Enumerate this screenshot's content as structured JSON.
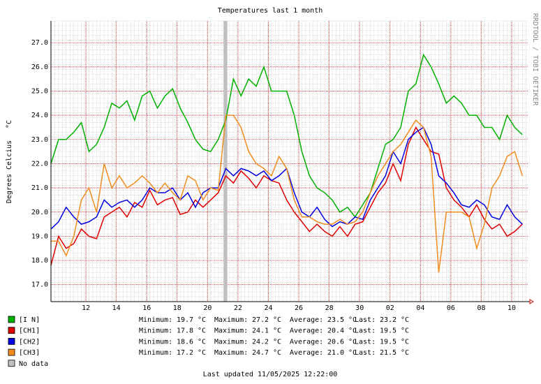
{
  "chart_data": {
    "type": "line",
    "title": "Temperatures last 1 month",
    "ylabel": "Degrees Celcius",
    "yunit": "°C",
    "watermark": "RRDTOOL / TOBI OETIKER",
    "footer": "Last updated 11/05/2025 12:22:00",
    "x": [
      0,
      0.5,
      1,
      1.5,
      2,
      2.5,
      3,
      3.5,
      4,
      4.5,
      5,
      5.5,
      6,
      6.5,
      7,
      7.5,
      8,
      8.5,
      9,
      9.5,
      10,
      10.5,
      11,
      11.5,
      12,
      12.5,
      13,
      13.5,
      14,
      14.5,
      15,
      15.5,
      16,
      16.5,
      17,
      17.5,
      18,
      18.5,
      19,
      19.5,
      20,
      20.5,
      21,
      21.5,
      22,
      22.5,
      23,
      23.5,
      24,
      24.5,
      25,
      25.5,
      26,
      26.5,
      27,
      27.5,
      28,
      28.5,
      29,
      29.5,
      30,
      30.5,
      31
    ],
    "xlim": [
      0,
      31.4
    ],
    "xticks": [
      {
        "value": 2.3,
        "label": "12"
      },
      {
        "value": 4.3,
        "label": "14"
      },
      {
        "value": 6.3,
        "label": "16"
      },
      {
        "value": 8.3,
        "label": "18"
      },
      {
        "value": 10.3,
        "label": "20"
      },
      {
        "value": 12.3,
        "label": "22"
      },
      {
        "value": 14.3,
        "label": "24"
      },
      {
        "value": 16.3,
        "label": "26"
      },
      {
        "value": 18.3,
        "label": "28"
      },
      {
        "value": 20.3,
        "label": "30"
      },
      {
        "value": 22.3,
        "label": "02"
      },
      {
        "value": 24.3,
        "label": "04"
      },
      {
        "value": 26.3,
        "label": "06"
      },
      {
        "value": 28.3,
        "label": "08"
      },
      {
        "value": 30.3,
        "label": "10"
      }
    ],
    "x_minor_step": 0.25,
    "ylim": [
      16.3,
      27.9
    ],
    "yticks": [
      {
        "value": 17,
        "label": "17.0"
      },
      {
        "value": 18,
        "label": "18.0"
      },
      {
        "value": 19,
        "label": "19.0"
      },
      {
        "value": 20,
        "label": "20.0"
      },
      {
        "value": 21,
        "label": "21.0"
      },
      {
        "value": 22,
        "label": "22.0"
      },
      {
        "value": 23,
        "label": "23.0"
      },
      {
        "value": 24,
        "label": "24.0"
      },
      {
        "value": 25,
        "label": "25.0"
      },
      {
        "value": 26,
        "label": "26.0"
      },
      {
        "value": 27,
        "label": "27.0"
      }
    ],
    "y_minor_step": 0.2,
    "grid": true,
    "series": [
      {
        "name": "[I N]",
        "color": "#00b000",
        "values": [
          22.0,
          23.0,
          23.0,
          23.3,
          23.7,
          22.5,
          22.8,
          23.5,
          24.5,
          24.3,
          24.6,
          23.8,
          24.8,
          25.0,
          24.3,
          24.8,
          25.1,
          24.3,
          23.7,
          23.0,
          22.6,
          22.5,
          23.0,
          23.8,
          25.5,
          24.8,
          25.5,
          25.2,
          26.0,
          25.0,
          25.0,
          25.0,
          24.0,
          22.5,
          21.5,
          21.0,
          20.8,
          20.5,
          20.0,
          20.2,
          19.8,
          20.3,
          20.8,
          21.8,
          22.8,
          23.0,
          23.5,
          25.0,
          25.3,
          26.5,
          26.0,
          25.3,
          24.5,
          24.8,
          24.5,
          24.0,
          24.0,
          23.5,
          23.5,
          23.0,
          24.0,
          23.5,
          23.2
        ],
        "stats": [
          "19.7",
          "27.2",
          "23.5",
          "23.2"
        ]
      },
      {
        "name": "[CH1]",
        "color": "#e00000",
        "values": [
          17.8,
          19.0,
          18.5,
          18.7,
          19.3,
          19.0,
          18.9,
          19.8,
          20.0,
          20.2,
          19.8,
          20.4,
          20.2,
          20.9,
          20.3,
          20.5,
          20.6,
          19.9,
          20.0,
          20.5,
          20.2,
          20.5,
          20.8,
          21.5,
          21.2,
          21.7,
          21.4,
          21.0,
          21.5,
          21.3,
          21.2,
          20.5,
          20.0,
          19.6,
          19.2,
          19.5,
          19.2,
          19.0,
          19.4,
          19.0,
          19.5,
          19.6,
          20.2,
          20.8,
          21.2,
          22.0,
          21.3,
          22.8,
          23.5,
          23.0,
          22.5,
          22.4,
          21.0,
          20.5,
          20.2,
          19.8,
          20.3,
          19.7,
          19.3,
          19.5,
          19.0,
          19.2,
          19.5
        ],
        "stats": [
          "17.8",
          "24.1",
          "20.4",
          "19.5"
        ]
      },
      {
        "name": "[CH2]",
        "color": "#0000e0",
        "values": [
          19.3,
          19.6,
          20.2,
          19.8,
          19.5,
          19.6,
          19.8,
          20.5,
          20.2,
          20.4,
          20.5,
          20.2,
          20.5,
          21.0,
          20.8,
          20.8,
          21.0,
          20.5,
          20.8,
          20.2,
          20.8,
          21.0,
          21.0,
          21.8,
          21.5,
          21.8,
          21.7,
          21.5,
          21.7,
          21.3,
          21.5,
          21.8,
          20.8,
          20.0,
          19.8,
          20.2,
          19.7,
          19.4,
          19.6,
          19.5,
          19.8,
          19.7,
          20.5,
          21.0,
          21.5,
          22.5,
          22.0,
          23.0,
          23.3,
          23.5,
          22.8,
          21.5,
          21.2,
          20.8,
          20.3,
          20.2,
          20.5,
          20.3,
          19.8,
          19.7,
          20.3,
          19.8,
          19.5
        ],
        "stats": [
          "18.6",
          "24.2",
          "20.6",
          "19.5"
        ]
      },
      {
        "name": "[CH3]",
        "color": "#f08c1e",
        "values": [
          18.8,
          18.8,
          18.2,
          19.0,
          20.5,
          21.0,
          20.0,
          22.0,
          21.0,
          21.5,
          21.0,
          21.2,
          21.5,
          21.2,
          20.8,
          21.2,
          20.8,
          20.5,
          21.5,
          21.3,
          20.5,
          21.0,
          20.9,
          24.0,
          24.0,
          23.5,
          22.5,
          22.0,
          21.8,
          21.5,
          22.3,
          21.8,
          20.5,
          19.8,
          19.8,
          19.6,
          19.5,
          19.5,
          19.7,
          19.5,
          19.6,
          20.0,
          20.8,
          21.5,
          22.0,
          22.5,
          22.8,
          23.3,
          23.8,
          23.5,
          22.3,
          17.5,
          20.0,
          20.0,
          20.0,
          19.8,
          18.5,
          19.5,
          21.0,
          21.5,
          22.3,
          22.5,
          21.5
        ],
        "stats": [
          "17.2",
          "24.7",
          "21.0",
          "21.5"
        ]
      }
    ],
    "no_data": {
      "name": "No data",
      "color": "#c0c0c0",
      "ranges": [
        [
          11.35,
          11.6
        ]
      ]
    },
    "stat_labels": [
      "Minimum:",
      "Maximum:",
      "Average:",
      "Last:"
    ]
  }
}
